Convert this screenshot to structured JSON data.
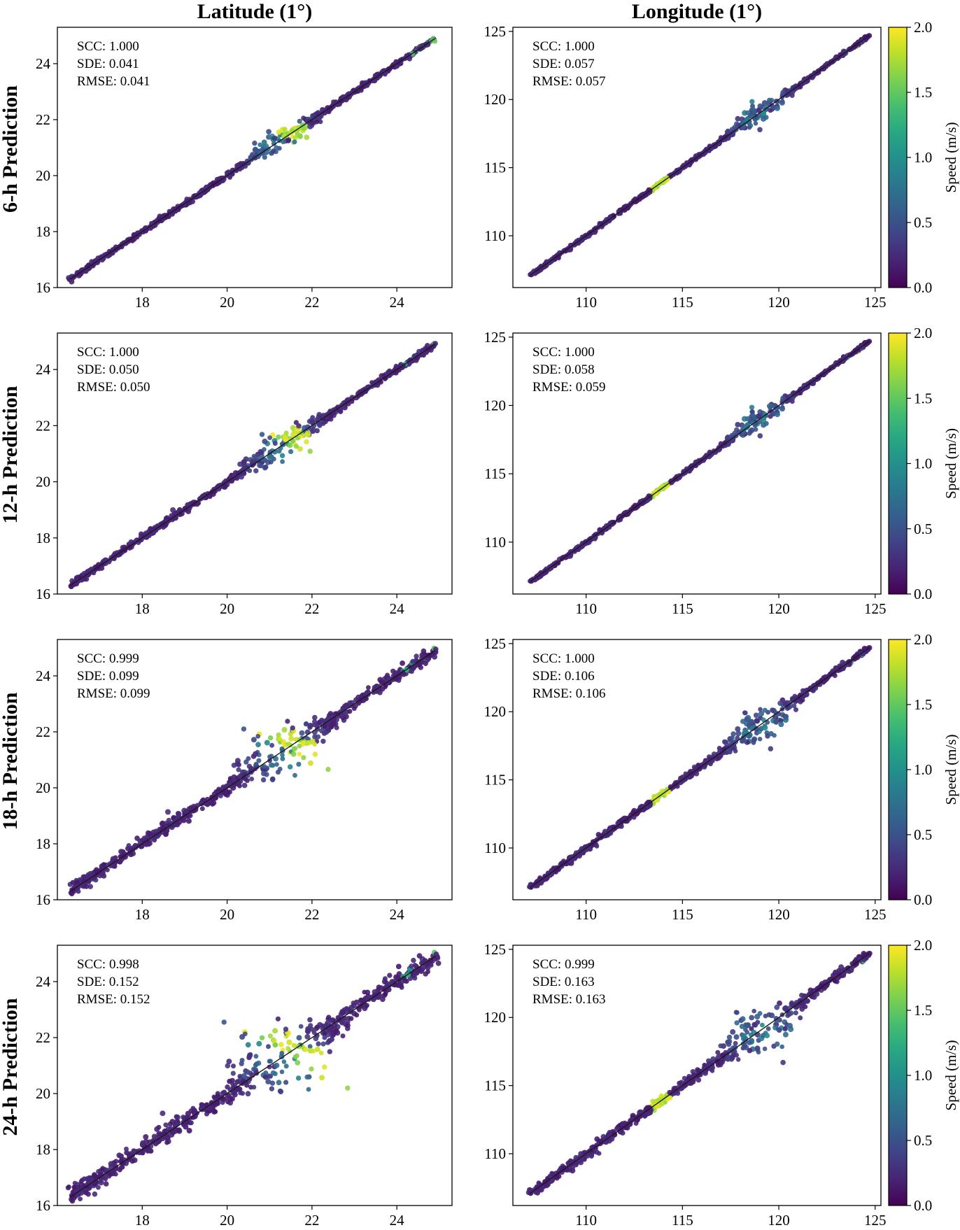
{
  "figure": {
    "column_titles": [
      "Latitude (1°)",
      "Longitude (1°)"
    ],
    "row_titles": [
      "6-h Prediction",
      "12-h Prediction",
      "18-h Prediction",
      "24-h Prediction"
    ],
    "colorbar": {
      "label": "Speed (m/s)",
      "range": [
        0.0,
        2.0
      ],
      "ticks": [
        "0.0",
        "0.5",
        "1.0",
        "1.5",
        "2.0"
      ],
      "colormap": "viridis"
    }
  },
  "chart_data": [
    {
      "type": "scatter",
      "row": 0,
      "col": 0,
      "title": "",
      "xlabel": "",
      "ylabel": "",
      "xlim": [
        16,
        25.3
      ],
      "ylim": [
        16,
        25.3
      ],
      "xticks": [
        18,
        20,
        22,
        24
      ],
      "yticks": [
        16,
        18,
        20,
        22,
        24
      ],
      "stats": [
        "SCC: 1.000",
        "SDE: 0.041",
        "RMSE: 0.041"
      ],
      "spread": 0.041,
      "fit_line": {
        "from": [
          16.3,
          16.3
        ],
        "to": [
          24.9,
          24.9
        ]
      },
      "cluster_center": 21.3,
      "hot_at": 21.6
    },
    {
      "type": "scatter",
      "row": 0,
      "col": 1,
      "title": "",
      "xlabel": "",
      "ylabel": "",
      "xlim": [
        106.2,
        125.3
      ],
      "ylim": [
        106.2,
        125.3
      ],
      "xticks": [
        110,
        115,
        120,
        125
      ],
      "yticks": [
        110,
        115,
        120,
        125
      ],
      "stats": [
        "SCC: 1.000",
        "SDE: 0.057",
        "RMSE: 0.057"
      ],
      "spread": 0.057,
      "fit_line": {
        "from": [
          107.1,
          107.1
        ],
        "to": [
          124.7,
          124.7
        ]
      },
      "cluster_center": 119,
      "hot_at": 113.8
    },
    {
      "type": "scatter",
      "row": 1,
      "col": 0,
      "title": "",
      "xlabel": "",
      "ylabel": "",
      "xlim": [
        16,
        25.3
      ],
      "ylim": [
        16,
        25.3
      ],
      "xticks": [
        18,
        20,
        22,
        24
      ],
      "yticks": [
        16,
        18,
        20,
        22,
        24
      ],
      "stats": [
        "SCC: 1.000",
        "SDE: 0.050",
        "RMSE: 0.050"
      ],
      "spread": 0.05,
      "fit_line": {
        "from": [
          16.3,
          16.3
        ],
        "to": [
          24.9,
          24.9
        ]
      },
      "cluster_center": 21.3,
      "hot_at": 21.6
    },
    {
      "type": "scatter",
      "row": 1,
      "col": 1,
      "title": "",
      "xlabel": "",
      "ylabel": "",
      "xlim": [
        106.2,
        125.3
      ],
      "ylim": [
        106.2,
        125.3
      ],
      "xticks": [
        110,
        115,
        120,
        125
      ],
      "yticks": [
        110,
        115,
        120,
        125
      ],
      "stats": [
        "SCC: 1.000",
        "SDE: 0.058",
        "RMSE: 0.059"
      ],
      "spread": 0.058,
      "fit_line": {
        "from": [
          107.1,
          107.1
        ],
        "to": [
          124.7,
          124.7
        ]
      },
      "cluster_center": 119,
      "hot_at": 113.8
    },
    {
      "type": "scatter",
      "row": 2,
      "col": 0,
      "title": "",
      "xlabel": "",
      "ylabel": "",
      "xlim": [
        16,
        25.3
      ],
      "ylim": [
        16,
        25.3
      ],
      "xticks": [
        18,
        20,
        22,
        24
      ],
      "yticks": [
        16,
        18,
        20,
        22,
        24
      ],
      "stats": [
        "SCC: 0.999",
        "SDE: 0.099",
        "RMSE: 0.099"
      ],
      "spread": 0.099,
      "fit_line": {
        "from": [
          16.3,
          16.3
        ],
        "to": [
          24.9,
          24.9
        ]
      },
      "cluster_center": 21.3,
      "hot_at": 21.6
    },
    {
      "type": "scatter",
      "row": 2,
      "col": 1,
      "title": "",
      "xlabel": "",
      "ylabel": "",
      "xlim": [
        106.2,
        125.3
      ],
      "ylim": [
        106.2,
        125.3
      ],
      "xticks": [
        110,
        115,
        120,
        125
      ],
      "yticks": [
        110,
        115,
        120,
        125
      ],
      "stats": [
        "SCC: 1.000",
        "SDE: 0.106",
        "RMSE: 0.106"
      ],
      "spread": 0.106,
      "fit_line": {
        "from": [
          107.1,
          107.1
        ],
        "to": [
          124.7,
          124.7
        ]
      },
      "cluster_center": 119,
      "hot_at": 113.8
    },
    {
      "type": "scatter",
      "row": 3,
      "col": 0,
      "title": "",
      "xlabel": "",
      "ylabel": "",
      "xlim": [
        16,
        25.3
      ],
      "ylim": [
        16,
        25.3
      ],
      "xticks": [
        18,
        20,
        22,
        24
      ],
      "yticks": [
        16,
        18,
        20,
        22,
        24
      ],
      "stats": [
        "SCC: 0.998",
        "SDE: 0.152",
        "RMSE: 0.152"
      ],
      "spread": 0.152,
      "fit_line": {
        "from": [
          16.3,
          16.3
        ],
        "to": [
          24.9,
          24.9
        ]
      },
      "cluster_center": 21.3,
      "hot_at": 21.6
    },
    {
      "type": "scatter",
      "row": 3,
      "col": 1,
      "title": "",
      "xlabel": "",
      "ylabel": "",
      "xlim": [
        106.2,
        125.3
      ],
      "ylim": [
        106.2,
        125.3
      ],
      "xticks": [
        110,
        115,
        120,
        125
      ],
      "yticks": [
        110,
        115,
        120,
        125
      ],
      "stats": [
        "SCC: 0.999",
        "SDE: 0.163",
        "RMSE: 0.163"
      ],
      "spread": 0.163,
      "fit_line": {
        "from": [
          107.1,
          107.1
        ],
        "to": [
          124.7,
          124.7
        ]
      },
      "cluster_center": 119,
      "hot_at": 113.8
    }
  ]
}
